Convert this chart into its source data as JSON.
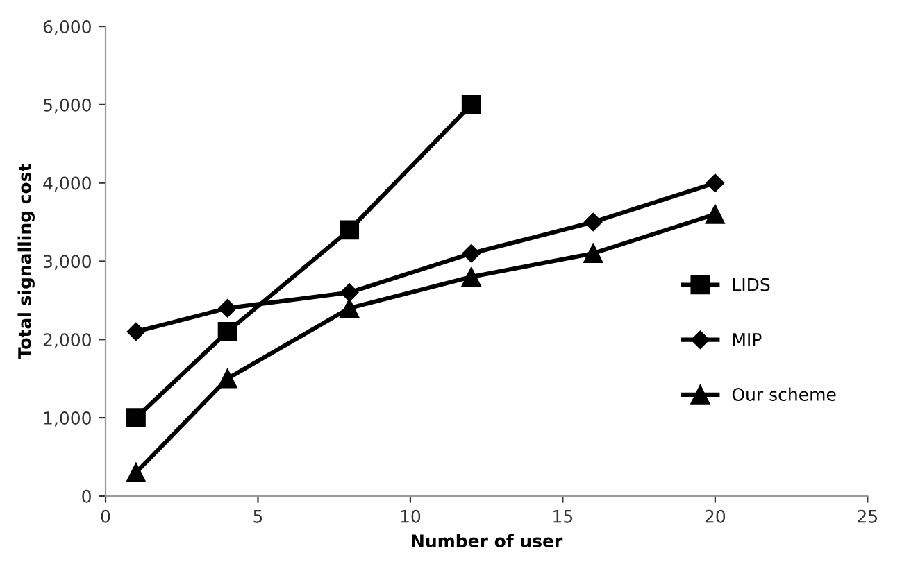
{
  "chart_data": {
    "type": "line",
    "xlabel": "Number of user",
    "ylabel": "Total signalling cost",
    "xlim": [
      0,
      25
    ],
    "xticks": [
      0,
      5,
      10,
      15,
      20,
      25
    ],
    "ylim": [
      0,
      6000
    ],
    "yticks": [
      {
        "value": 0,
        "label": "0"
      },
      {
        "value": 1000,
        "label": "1,000"
      },
      {
        "value": 2000,
        "label": "2,000"
      },
      {
        "value": 3000,
        "label": "3,000"
      },
      {
        "value": 4000,
        "label": "4,000"
      },
      {
        "value": 5000,
        "label": "5,000"
      },
      {
        "value": 6000,
        "label": "6,000"
      }
    ],
    "grid": false,
    "legend": "right",
    "line_style": "solid",
    "series": [
      {
        "name": "LIDS",
        "color": "#000000",
        "marker": "square",
        "x": [
          1,
          4,
          8,
          12
        ],
        "values": [
          1000,
          2100,
          3400,
          5000
        ]
      },
      {
        "name": "MIP",
        "color": "#000000",
        "marker": "diamond",
        "x": [
          1,
          4,
          8,
          12,
          16,
          20
        ],
        "values": [
          2100,
          2400,
          2600,
          3100,
          3500,
          4000
        ]
      },
      {
        "name": "Our scheme",
        "color": "#000000",
        "marker": "triangle",
        "x": [
          1,
          4,
          8,
          12,
          16,
          20
        ],
        "values": [
          300,
          1500,
          2400,
          2800,
          3100,
          3600
        ]
      }
    ]
  }
}
